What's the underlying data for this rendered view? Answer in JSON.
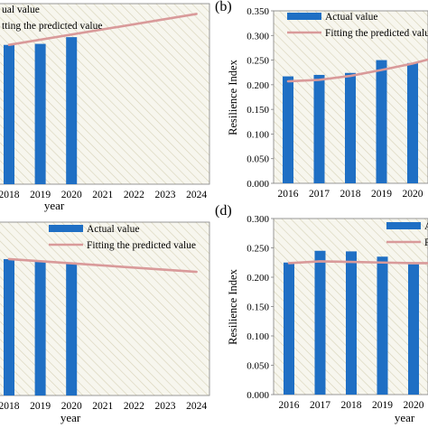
{
  "colors": {
    "bar": "#1f6fc4",
    "fit_line": "#d99a9a",
    "hatch_line": "#d7d2b7",
    "plot_bg": "#f7f6ee",
    "axis": "#7f7f7f"
  },
  "chart_data": [
    {
      "panel_label": "",
      "type": "bar",
      "title": "",
      "xlabel": "year",
      "ylabel": "",
      "x_ticks": [
        "2018",
        "2019",
        "2020",
        "2021",
        "2022",
        "2023",
        "2024"
      ],
      "ylim": [
        0,
        0.35
      ],
      "legend": [
        "ual value",
        "tting the predicted value"
      ],
      "legend_position": "top-left",
      "grid": false,
      "hatched_background": true,
      "bars": {
        "name": "Actual value",
        "x": [
          "2018",
          "2019",
          "2020"
        ],
        "values": [
          0.27,
          0.272,
          0.285
        ]
      },
      "fit_line": {
        "name": "Fitting the predicted value",
        "x": [
          "2018",
          "2024"
        ],
        "values": [
          0.27,
          0.33
        ]
      }
    },
    {
      "panel_label": "(b)",
      "type": "bar",
      "title": "",
      "xlabel": "",
      "ylabel": "Resilience Index",
      "x_ticks": [
        "2016",
        "2017",
        "2018",
        "2019",
        "2020"
      ],
      "y_ticks": [
        "0.000",
        "0.050",
        "0.100",
        "0.150",
        "0.200",
        "0.250",
        "0.300",
        "0.350"
      ],
      "ylim": [
        0,
        0.35
      ],
      "legend": [
        "Actual value",
        "Fitting the predicted value"
      ],
      "legend_position": "top-right",
      "grid": false,
      "hatched_background": true,
      "bars": {
        "name": "Actual value",
        "x": [
          "2016",
          "2017",
          "2018",
          "2019",
          "2020"
        ],
        "values": [
          0.217,
          0.22,
          0.224,
          0.25,
          0.244
        ]
      },
      "fit_line": {
        "name": "Fitting the predicted value",
        "x": [
          "2016",
          "2017",
          "2018",
          "2019",
          "2020",
          "2020.9"
        ],
        "values": [
          0.207,
          0.21,
          0.218,
          0.23,
          0.243,
          0.258
        ]
      }
    },
    {
      "panel_label": "",
      "type": "bar",
      "title": "",
      "xlabel": "year",
      "ylabel": "",
      "x_ticks": [
        "2018",
        "2019",
        "2020",
        "2021",
        "2022",
        "2023",
        "2024"
      ],
      "ylim": [
        0,
        0.3
      ],
      "legend": [
        "Actual value",
        "Fitting the predicted value"
      ],
      "legend_position": "top-right",
      "grid": false,
      "hatched_background": true,
      "bars": {
        "name": "Actual value",
        "x": [
          "2018",
          "2019",
          "2020"
        ],
        "values": [
          0.236,
          0.232,
          0.23
        ]
      },
      "fit_line": {
        "name": "Fitting the predicted value",
        "x": [
          "2018",
          "2024"
        ],
        "values": [
          0.236,
          0.214
        ]
      }
    },
    {
      "panel_label": "(d)",
      "type": "bar",
      "title": "",
      "xlabel": "year",
      "ylabel": "Resilience Index",
      "x_ticks": [
        "2016",
        "2017",
        "2018",
        "2019",
        "2020"
      ],
      "y_ticks": [
        "0.000",
        "0.050",
        "0.100",
        "0.150",
        "0.200",
        "0.250",
        "0.300"
      ],
      "ylim": [
        0,
        0.3
      ],
      "legend": [
        "A",
        "F"
      ],
      "legend_position": "top-right",
      "grid": false,
      "hatched_background": true,
      "bars": {
        "name": "Actual value",
        "x": [
          "2016",
          "2017",
          "2018",
          "2019",
          "2020"
        ],
        "values": [
          0.225,
          0.245,
          0.244,
          0.235,
          0.222
        ]
      },
      "fit_line": {
        "name": "Fitting the predicted value",
        "x": [
          "2016",
          "2017",
          "2018",
          "2019",
          "2020",
          "2020.9"
        ],
        "values": [
          0.224,
          0.227,
          0.226,
          0.225,
          0.224,
          0.224
        ]
      }
    }
  ]
}
